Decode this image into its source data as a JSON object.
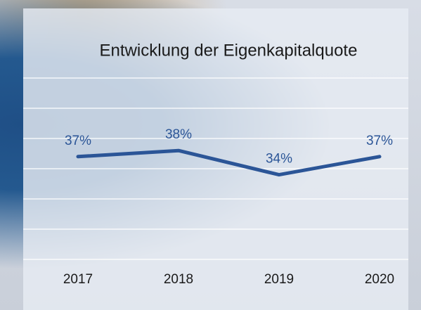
{
  "chart_data": {
    "type": "line",
    "title": "Entwicklung der Eigenkapitalquote",
    "categories": [
      "2017",
      "2018",
      "2019",
      "2020"
    ],
    "series": [
      {
        "color": "#2b5597",
        "values": [
          37,
          38,
          34,
          37
        ],
        "value_labels": [
          "37%",
          "38%",
          "34%",
          "37%"
        ]
      }
    ],
    "ylim": [
      20,
      50
    ],
    "yticks": [
      20,
      25,
      30,
      35,
      40,
      45,
      50
    ],
    "grid": true
  }
}
